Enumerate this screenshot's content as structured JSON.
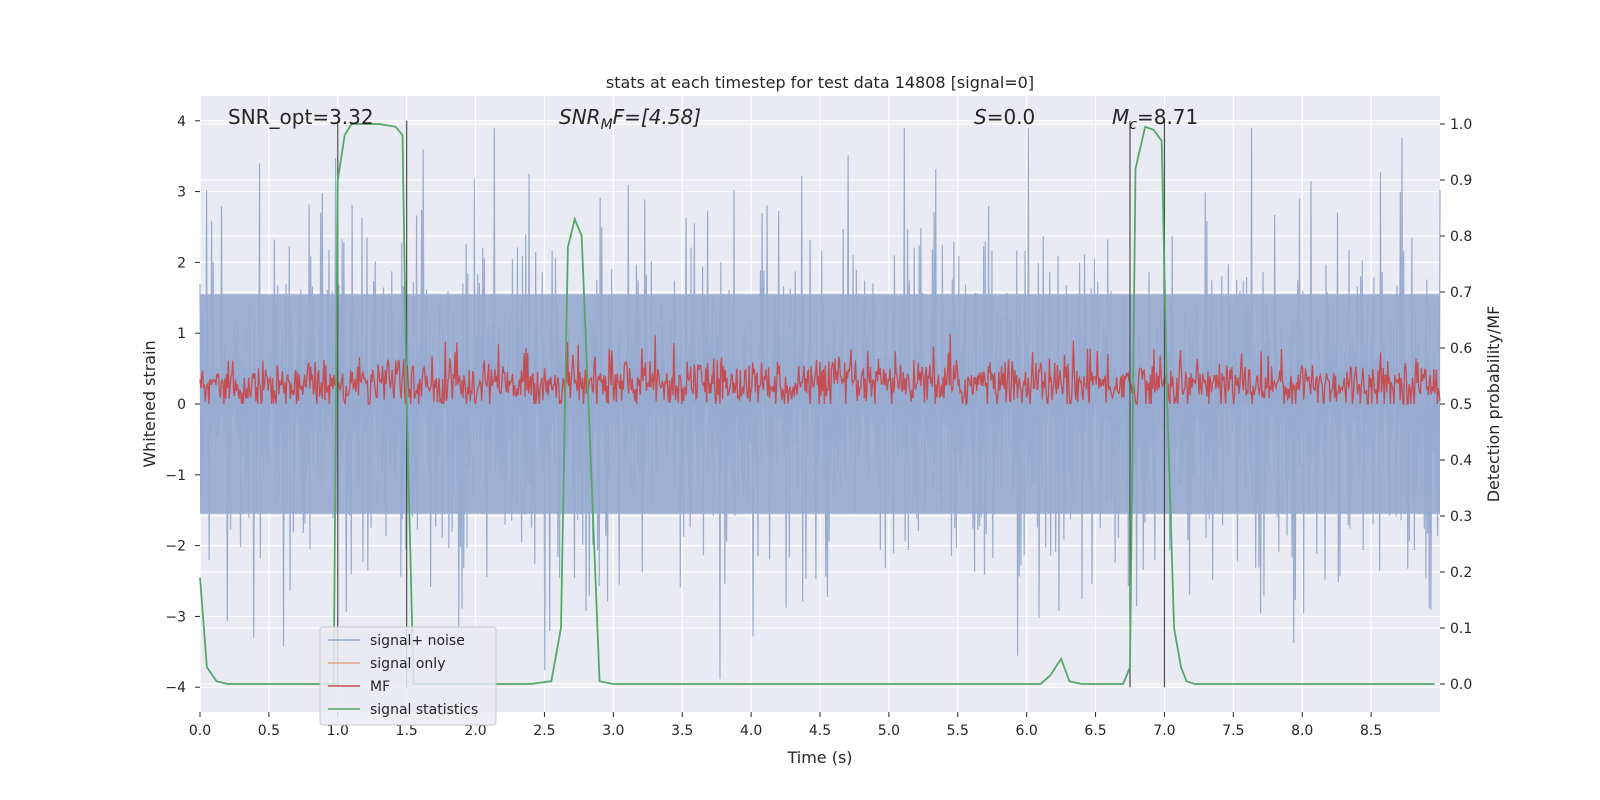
{
  "chart_data": {
    "type": "line",
    "title": "stats at each timestep for test data 14808 [signal=0]",
    "xlabel": "Time (s)",
    "ylabel": "Whitened strain",
    "ylabel_right": "Detection probability/MF",
    "xlim": [
      0.0,
      9.0
    ],
    "ylim": [
      -4.35,
      4.35
    ],
    "ylim_right": [
      -0.05,
      1.05
    ],
    "xticks": [
      "0.0",
      "0.5",
      "1.0",
      "1.5",
      "2.0",
      "2.5",
      "3.0",
      "3.5",
      "4.0",
      "4.5",
      "5.0",
      "5.5",
      "6.0",
      "6.5",
      "7.0",
      "7.5",
      "8.0",
      "8.5"
    ],
    "yticks": [
      "4",
      "3",
      "2",
      "1",
      "0",
      "−1",
      "−2",
      "−3",
      "−4"
    ],
    "yticks_right": [
      "1.0",
      "0.9",
      "0.8",
      "0.7",
      "0.6",
      "0.5",
      "0.4",
      "0.3",
      "0.2",
      "0.1",
      "0.0"
    ],
    "annotations": {
      "snr_opt": "SNR_opt=3.32",
      "snr_mf_main": "SNR",
      "snr_mf_sub": "M",
      "snr_mf_tail": "F=[4.58]",
      "s_label": "S",
      "s_tail": "=0.0",
      "mc_main": "M",
      "mc_sub": "c",
      "mc_tail": "=8.71"
    },
    "vlines": [
      1.0,
      1.5,
      6.75,
      7.0
    ],
    "legend": {
      "location": "lower-left",
      "entries": [
        {
          "label": "signal+ noise",
          "color": "#8fa6cc"
        },
        {
          "label": "signal only",
          "color": "#e8a584"
        },
        {
          "label": "MF",
          "color": "#c44e52"
        },
        {
          "label": "signal statistics",
          "color": "#55a868"
        }
      ]
    },
    "series": [
      {
        "name": "signal+ noise",
        "axis": "left",
        "description": "whitened strain noise, approx range -3.9 to 3.9"
      },
      {
        "name": "MF",
        "axis": "left",
        "description": "matched filter output, approx range 0 to 1"
      },
      {
        "name": "signal statistics",
        "axis": "right",
        "x": [
          0.0,
          0.05,
          0.12,
          0.2,
          0.5,
          1.0,
          0.97,
          1.0,
          1.05,
          1.1,
          1.3,
          1.42,
          1.47,
          1.5,
          1.55,
          2.0,
          2.4,
          2.55,
          2.62,
          2.67,
          2.72,
          2.77,
          2.82,
          2.9,
          3.0,
          6.1,
          6.17,
          6.25,
          6.31,
          6.4,
          6.7,
          6.75,
          6.79,
          6.86,
          6.92,
          6.98,
          7.02,
          7.07,
          7.12,
          7.16,
          7.22,
          8.96
        ],
        "y": [
          0.19,
          0.03,
          0.005,
          0.0,
          0.0,
          0.0,
          0.0,
          0.9,
          0.98,
          1.0,
          1.0,
          0.995,
          0.98,
          0.5,
          0.0,
          0.0,
          0.0,
          0.005,
          0.1,
          0.78,
          0.83,
          0.8,
          0.5,
          0.005,
          0.0,
          0.0,
          0.015,
          0.045,
          0.005,
          0.0,
          0.0,
          0.03,
          0.92,
          0.995,
          0.99,
          0.97,
          0.5,
          0.1,
          0.03,
          0.005,
          0.0,
          0.0
        ]
      }
    ]
  }
}
